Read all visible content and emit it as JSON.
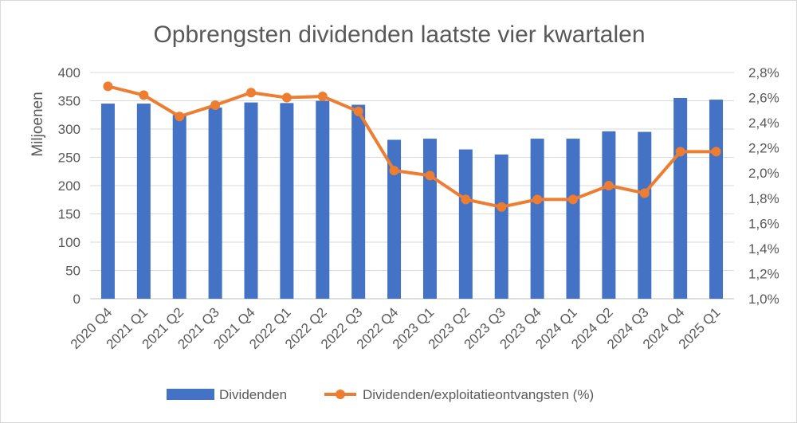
{
  "chart_data": {
    "type": "bar+line",
    "title": "Opbrengsten dividenden laatste vier kwartalen",
    "ylabel": "Miljoenen",
    "y2label": "",
    "categories": [
      "2020 Q4",
      "2021 Q1",
      "2021 Q2",
      "2021 Q3",
      "2021 Q4",
      "2022 Q1",
      "2022 Q2",
      "2022 Q3",
      "2022 Q4",
      "2023 Q1",
      "2023 Q2",
      "2023 Q3",
      "2023 Q4",
      "2024 Q1",
      "2024 Q2",
      "2024 Q3",
      "2024 Q4",
      "2025 Q1"
    ],
    "series": [
      {
        "name": "Dividenden",
        "type": "bar",
        "axis": "left",
        "color": "#4472C4",
        "values": [
          345,
          345,
          325,
          338,
          347,
          346,
          350,
          343,
          281,
          283,
          264,
          255,
          283,
          283,
          296,
          295,
          355,
          352
        ]
      },
      {
        "name": "Dividenden/exploitatieontvangsten (%)",
        "type": "line",
        "axis": "right",
        "color": "#ED7D31",
        "values": [
          2.69,
          2.62,
          2.45,
          2.54,
          2.64,
          2.6,
          2.61,
          2.49,
          2.02,
          1.98,
          1.79,
          1.73,
          1.79,
          1.79,
          1.9,
          1.84,
          2.17,
          2.17
        ]
      }
    ],
    "ylim": [
      0,
      400
    ],
    "yticks": [
      "0",
      "50",
      "100",
      "150",
      "200",
      "250",
      "300",
      "350",
      "400"
    ],
    "y2lim": [
      1.0,
      2.8
    ],
    "y2ticks": [
      "1,0%",
      "1,2%",
      "1,4%",
      "1,6%",
      "1,8%",
      "2,0%",
      "2,2%",
      "2,4%",
      "2,6%",
      "2,8%"
    ],
    "grid": true,
    "legend_position": "bottom"
  }
}
